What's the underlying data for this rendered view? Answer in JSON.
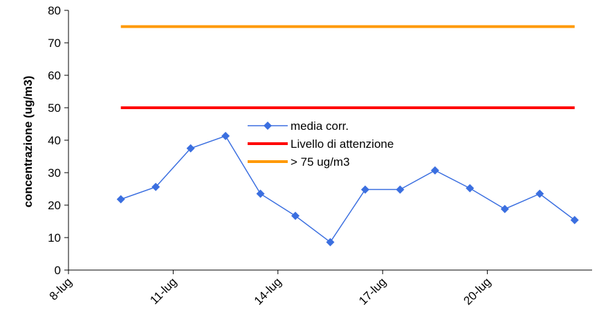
{
  "chart_data": {
    "type": "line",
    "x": [
      "9-lug",
      "10-lug",
      "11-lug",
      "12-lug",
      "13-lug",
      "14-lug",
      "15-lug",
      "16-lug",
      "17-lug",
      "18-lug",
      "19-lug",
      "20-lug",
      "21-lug",
      "22-lug"
    ],
    "x_tick_labels": [
      "8-lug",
      "11-lug",
      "14-lug",
      "17-lug",
      "20-lug"
    ],
    "series": [
      {
        "name": "media corr.",
        "color": "#3B6FE0",
        "marker": "diamond",
        "values": [
          21.8,
          25.6,
          37.5,
          41.3,
          23.5,
          16.7,
          8.6,
          24.8,
          24.8,
          30.7,
          25.2,
          18.8,
          23.5,
          15.4
        ]
      },
      {
        "name": "Livello di attenzione",
        "color": "#FF0000",
        "marker": "none",
        "values": [
          50,
          50,
          50,
          50,
          50,
          50,
          50,
          50,
          50,
          50,
          50,
          50,
          50,
          50
        ]
      },
      {
        "name": "> 75 ug/m3",
        "color": "#FF9900",
        "marker": "none",
        "values": [
          75,
          75,
          75,
          75,
          75,
          75,
          75,
          75,
          75,
          75,
          75,
          75,
          75,
          75
        ]
      }
    ],
    "title": "",
    "xlabel": "",
    "ylabel": "concentrazione (ug/m3)",
    "ylim": [
      0,
      80
    ],
    "y_ticks": [
      0,
      10,
      20,
      30,
      40,
      50,
      60,
      70,
      80
    ],
    "grid": false,
    "legend_position": "center"
  }
}
